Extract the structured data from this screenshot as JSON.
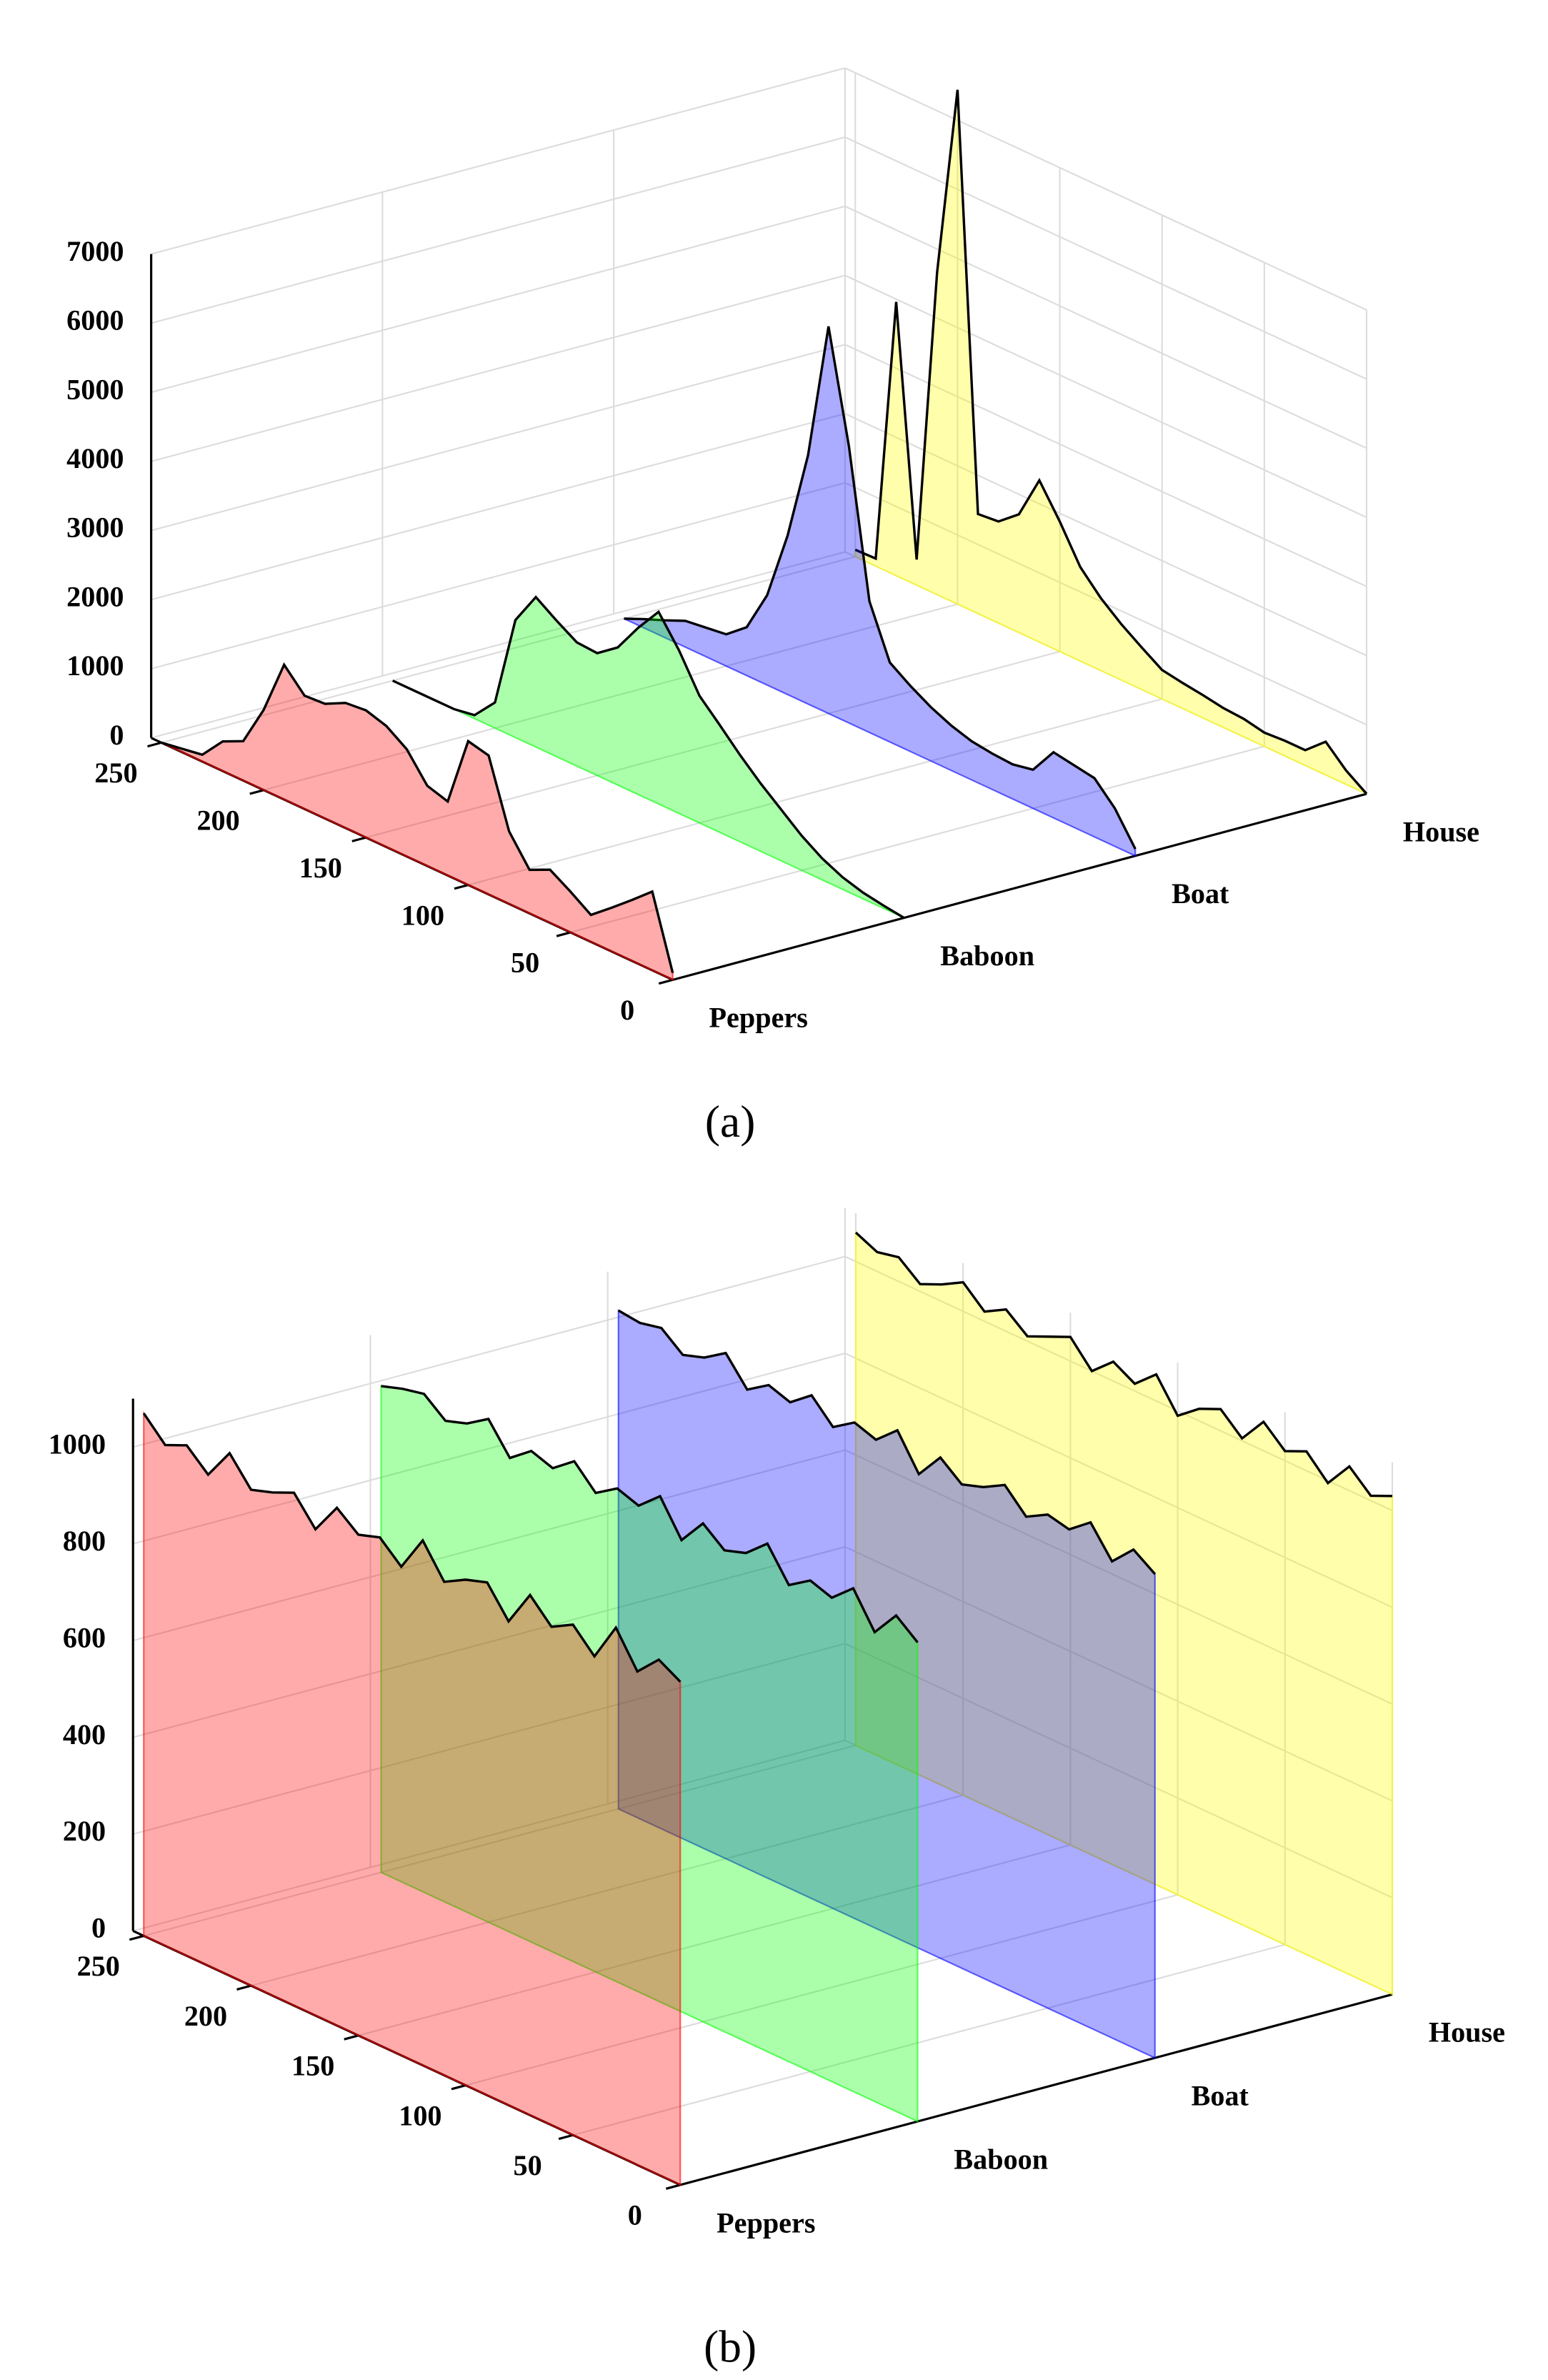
{
  "chart_data": [
    {
      "type": "waterfall",
      "caption": "(a)",
      "x": [
        0,
        10,
        20,
        30,
        40,
        50,
        60,
        70,
        80,
        90,
        100,
        110,
        120,
        130,
        140,
        150,
        160,
        170,
        180,
        190,
        200,
        210,
        220,
        230,
        240,
        250
      ],
      "xlim": [
        0,
        255
      ],
      "xticks": [
        0,
        50,
        100,
        150,
        200,
        250
      ],
      "ylim": [
        0,
        7000
      ],
      "yticks": [
        0,
        1000,
        2000,
        3000,
        4000,
        5000,
        6000,
        7000
      ],
      "grid": true,
      "series": [
        {
          "name": "Peppers",
          "color": "#ff0000",
          "values": [
            100,
            1140,
            880,
            630,
            390,
            590,
            770,
            630,
            1050,
            2010,
            2080,
            1070,
            1160,
            1550,
            1750,
            1840,
            1810,
            1660,
            1640,
            1950,
            1160,
            570,
            430,
            100,
            50,
            0
          ]
        },
        {
          "name": "Baboon",
          "color": "#00ff00",
          "values": [
            0,
            40,
            90,
            175,
            310,
            500,
            740,
            980,
            1250,
            1550,
            1840,
            2360,
            2780,
            2410,
            1990,
            1770,
            1790,
            1970,
            2170,
            1700,
            370,
            50,
            0,
            0,
            0,
            0
          ]
        },
        {
          "name": "Boat",
          "color": "#0000ff",
          "values": [
            100,
            550,
            850,
            900,
            950,
            560,
            500,
            520,
            560,
            650,
            780,
            950,
            1150,
            1900,
            4000,
            5600,
            3600,
            2300,
            1300,
            700,
            460,
            420,
            380,
            250,
            130,
            0
          ]
        },
        {
          "name": "House",
          "color": "#ffff00",
          "values": [
            0,
            200,
            480,
            220,
            220,
            200,
            260,
            280,
            330,
            370,
            420,
            610,
            810,
            1050,
            1360,
            1880,
            2340,
            1710,
            1470,
            1440,
            7440,
            4660,
            370,
            3960,
            110,
            100
          ]
        }
      ]
    },
    {
      "type": "waterfall",
      "caption": "(b)",
      "x": [
        0,
        10,
        20,
        30,
        40,
        50,
        60,
        70,
        80,
        90,
        100,
        110,
        120,
        130,
        140,
        150,
        160,
        170,
        180,
        190,
        200,
        210,
        220,
        230,
        240,
        250
      ],
      "xlim": [
        0,
        255
      ],
      "xticks": [
        0,
        50,
        100,
        150,
        200,
        250
      ],
      "ylim": [
        0,
        1100
      ],
      "yticks": [
        0,
        200,
        400,
        600,
        800,
        1000
      ],
      "grid": true,
      "series": [
        {
          "name": "Peppers",
          "color": "#ff0000",
          "values": [
            1040,
            1065,
            1020,
            1090,
            1010,
            1055,
            1030,
            1075,
            1000,
            1060,
            1045,
            1020,
            1085,
            1010,
            1050,
            1035,
            1070,
            1005,
            1060,
            1040,
            1025,
            1080,
            1015,
            1055,
            1035,
            1080
          ]
        },
        {
          "name": "Baboon",
          "color": "#00ff00",
          "values": [
            990,
            1025,
            970,
            1040,
            1000,
            1015,
            985,
            1050,
            1010,
            995,
            1030,
            975,
            1045,
            1005,
            1020,
            990,
            1035,
            1000,
            1015,
            980,
            1040,
            1010,
            995,
            1030,
            1020,
            1005
          ]
        },
        {
          "name": "Boat",
          "color": "#0000ff",
          "values": [
            1000,
            1030,
            985,
            1045,
            1010,
            1020,
            995,
            1040,
            1015,
            1000,
            1035,
            980,
            1050,
            1010,
            1025,
            995,
            1040,
            1005,
            1020,
            990,
            1045,
            1015,
            1000,
            1035,
            1025,
            1030
          ]
        },
        {
          "name": "House",
          "color": "#ffff00",
          "values": [
            1030,
            1010,
            1050,
            995,
            1040,
            1020,
            1060,
            1005,
            1045,
            1025,
            990,
            1055,
            1015,
            1040,
            1000,
            1050,
            1030,
            1010,
            1045,
            1020,
            1060,
            1035,
            1015,
            1050,
            1040,
            1060
          ]
        }
      ]
    }
  ]
}
